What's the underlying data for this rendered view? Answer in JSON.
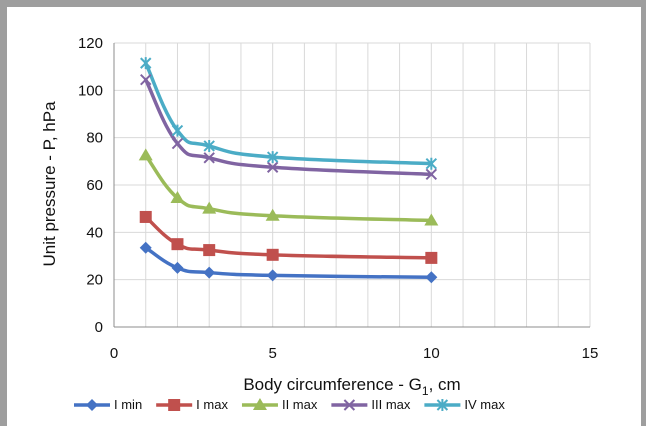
{
  "chart_data": {
    "type": "line",
    "title": "",
    "xlabel": "Body circumference - G",
    "xlabel_subscript": "1",
    "xlabel_suffix": ", cm",
    "ylabel": "Unit pressure - P, hPa",
    "xlim": [
      0,
      15
    ],
    "ylim": [
      0,
      120
    ],
    "x_ticks": [
      0,
      5,
      10,
      15
    ],
    "y_ticks": [
      0,
      20,
      40,
      60,
      80,
      100,
      120
    ],
    "grid": true,
    "legend_position": "bottom",
    "x": [
      1,
      2,
      3,
      5,
      10
    ],
    "series": [
      {
        "name": "I min",
        "values": [
          33.5,
          25,
          23,
          21.8,
          21
        ],
        "color": "#4472c4",
        "marker": "diamond"
      },
      {
        "name": "I max",
        "values": [
          46.5,
          35,
          32.5,
          30.5,
          29.2
        ],
        "color": "#c0504d",
        "marker": "square"
      },
      {
        "name": "II max",
        "values": [
          72.5,
          54.5,
          50,
          47,
          45
        ],
        "color": "#9bbb59",
        "marker": "triangle"
      },
      {
        "name": "III max",
        "values": [
          104.5,
          77.5,
          71.5,
          67.5,
          64.5
        ],
        "color": "#8064a2",
        "marker": "x"
      },
      {
        "name": "IV max",
        "values": [
          111.5,
          83,
          76.5,
          71.8,
          69
        ],
        "color": "#4bacc6",
        "marker": "star"
      }
    ]
  }
}
